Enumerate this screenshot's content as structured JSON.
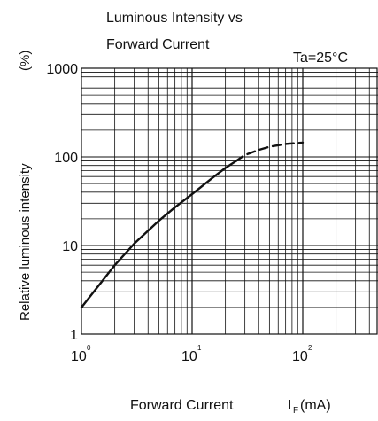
{
  "chart_data": {
    "type": "line",
    "title_line1": "Luminous Intensity vs",
    "title_line2": "Forward Current",
    "condition": "Ta=25°C",
    "ylabel": "Relative luminous intensity",
    "yunit": "(%)",
    "xlabel_prefix": "Forward Current",
    "xlabel_symbol": "I",
    "xlabel_subscript": "F",
    "xlabel_unit": "(mA)",
    "x_scale": "log",
    "y_scale": "log",
    "xlim": [
      1,
      1000
    ],
    "ylim": [
      1,
      1000
    ],
    "grid": true,
    "x_tick_labels": [
      {
        "value": 1,
        "base": "10",
        "exp": "0"
      },
      {
        "value": 10,
        "base": "10",
        "exp": "1"
      },
      {
        "value": 100,
        "base": "10",
        "exp": "2"
      }
    ],
    "y_tick_labels": [
      {
        "value": 1,
        "label": "1"
      },
      {
        "value": 10,
        "label": "10"
      },
      {
        "value": 100,
        "label": "100"
      },
      {
        "value": 1000,
        "label": "1000"
      }
    ],
    "series": [
      {
        "style": "solid",
        "color": "#111111",
        "points": [
          [
            1,
            2
          ],
          [
            1.5,
            3.8
          ],
          [
            2,
            6
          ],
          [
            3,
            10.5
          ],
          [
            5,
            19
          ],
          [
            7,
            27
          ],
          [
            10,
            38
          ],
          [
            15,
            57
          ],
          [
            20,
            75
          ],
          [
            25,
            90
          ]
        ]
      },
      {
        "style": "dashed",
        "color": "#111111",
        "points": [
          [
            25,
            90
          ],
          [
            30,
            105
          ],
          [
            40,
            120
          ],
          [
            50,
            130
          ],
          [
            70,
            140
          ],
          [
            100,
            145
          ]
        ]
      }
    ]
  }
}
